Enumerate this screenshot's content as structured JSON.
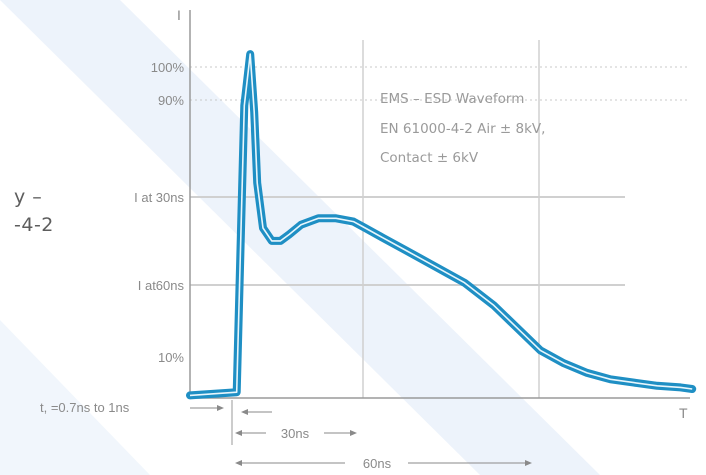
{
  "side_caption": {
    "line1": "y –",
    "line2": "-4-2"
  },
  "chart_data": {
    "type": "line",
    "title_lines": [
      "EMS – ESD Waveform",
      "EN 61000-4-2 Air ± 8kV,",
      "Contact ± 6kV"
    ],
    "ylabel": "I",
    "xlabel": "T",
    "y_ticks": [
      "100%",
      "90%",
      "I at 30ns",
      "I at60ns",
      "10%"
    ],
    "annotations": {
      "rise_time": "t, =0.7ns  to 1ns",
      "span_30": "30ns",
      "span_60": "60ns"
    },
    "grid": true,
    "series": [
      {
        "color": "#1f8fc4",
        "x": [
          0,
          8,
          9.3,
          10.3,
          11,
          11.5,
          12.5,
          14,
          15.5,
          17,
          19,
          22,
          25,
          28,
          30,
          33,
          37,
          42,
          47,
          52,
          56,
          60,
          64,
          68,
          72,
          76,
          80,
          84,
          86
        ],
        "y": [
          -0.02,
          -0.01,
          0.88,
          1.04,
          0.86,
          0.64,
          0.5,
          0.46,
          0.46,
          0.48,
          0.51,
          0.53,
          0.53,
          0.52,
          0.5,
          0.47,
          0.43,
          0.38,
          0.33,
          0.26,
          0.19,
          0.12,
          0.08,
          0.05,
          0.03,
          0.02,
          0.01,
          0.005,
          0.0
        ]
      }
    ]
  }
}
